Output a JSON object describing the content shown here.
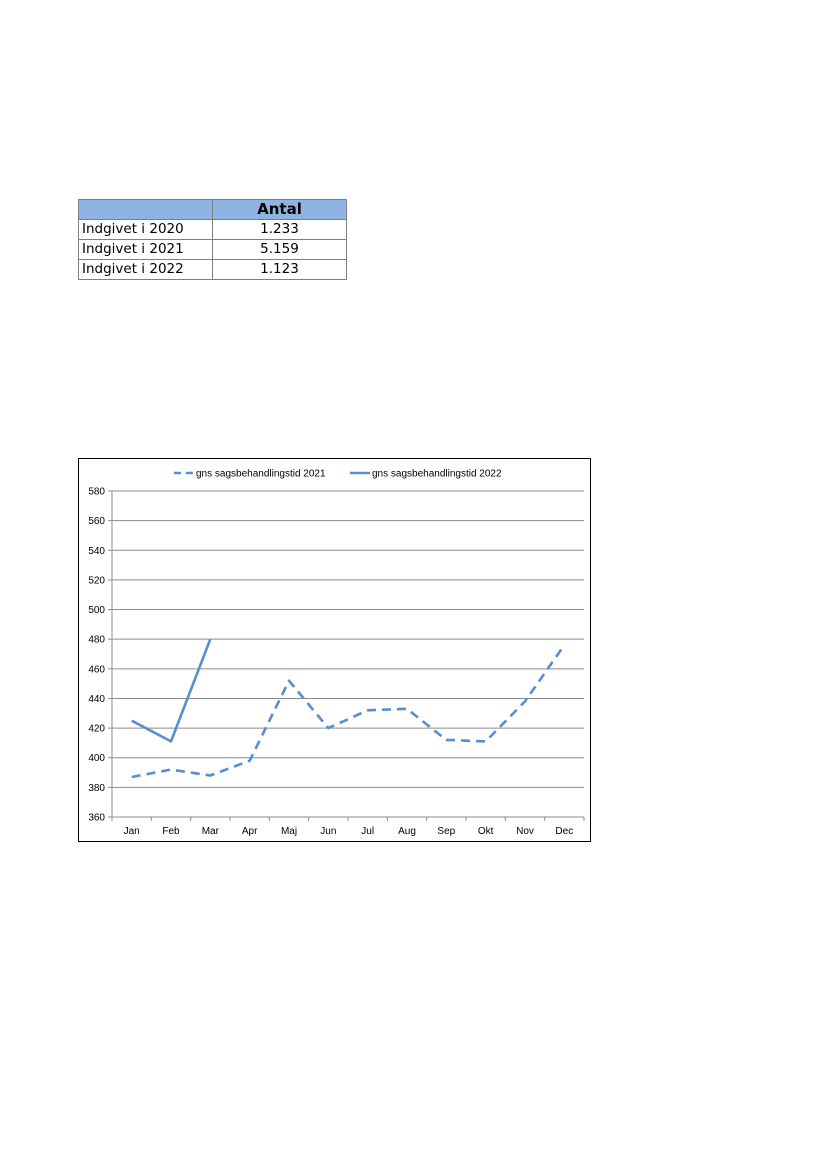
{
  "table": {
    "header": [
      "",
      "Antal"
    ],
    "rows": [
      {
        "label": "Indgivet i 2020",
        "value": "1.233"
      },
      {
        "label": "Indgivet i 2021",
        "value": "5.159"
      },
      {
        "label": "Indgivet i 2022",
        "value": "1.123"
      }
    ]
  },
  "chart_data": {
    "type": "line",
    "title": "",
    "xlabel": "",
    "ylabel": "",
    "categories": [
      "Jan",
      "Feb",
      "Mar",
      "Apr",
      "Maj",
      "Jun",
      "Jul",
      "Aug",
      "Sep",
      "Okt",
      "Nov",
      "Dec"
    ],
    "ylim": [
      360,
      580
    ],
    "yticks": [
      360,
      380,
      400,
      420,
      440,
      460,
      480,
      500,
      520,
      540,
      560,
      580
    ],
    "grid": true,
    "legend": "top",
    "series": [
      {
        "name": "gns sagsbehandlingstid 2021",
        "style": "dashed",
        "color": "#558ed5",
        "values": [
          387,
          392,
          388,
          398,
          452,
          420,
          432,
          433,
          412,
          411,
          438,
          476
        ]
      },
      {
        "name": "gns sagsbehandlingstid 2022",
        "style": "solid",
        "color": "#558ed5",
        "values": [
          425,
          411,
          480,
          null,
          null,
          null,
          null,
          null,
          null,
          null,
          null,
          null
        ]
      }
    ]
  }
}
